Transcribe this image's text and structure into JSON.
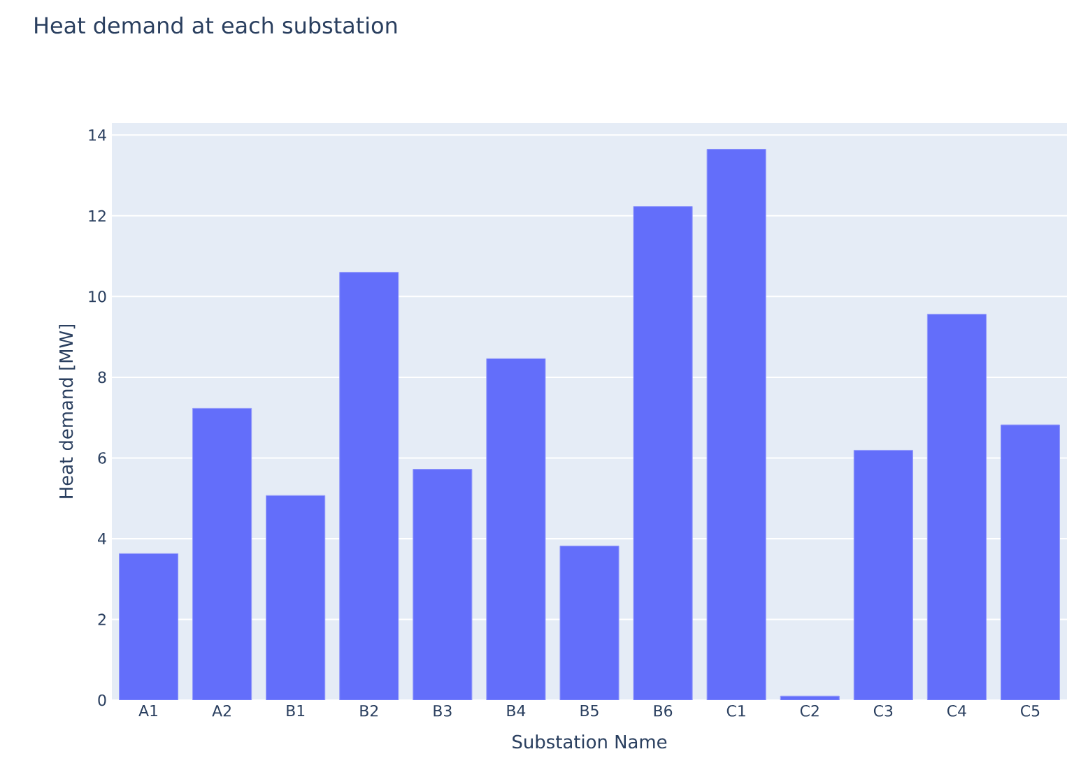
{
  "chart_data": {
    "type": "bar",
    "title": "Heat demand at each substation",
    "xlabel": "Substation Name",
    "ylabel": "Heat demand [MW]",
    "categories": [
      "A1",
      "A2",
      "B1",
      "B2",
      "B3",
      "B4",
      "B5",
      "B6",
      "C1",
      "C2",
      "C3",
      "C4",
      "C5"
    ],
    "values": [
      3.63,
      7.23,
      5.07,
      10.6,
      5.72,
      8.46,
      3.82,
      12.23,
      13.65,
      0.1,
      6.19,
      9.56,
      6.82
    ],
    "color": "#636efa",
    "ylim": [
      0,
      14.3
    ],
    "yticks": [
      0,
      2,
      4,
      6,
      8,
      10,
      12,
      14
    ],
    "grid": "y"
  }
}
